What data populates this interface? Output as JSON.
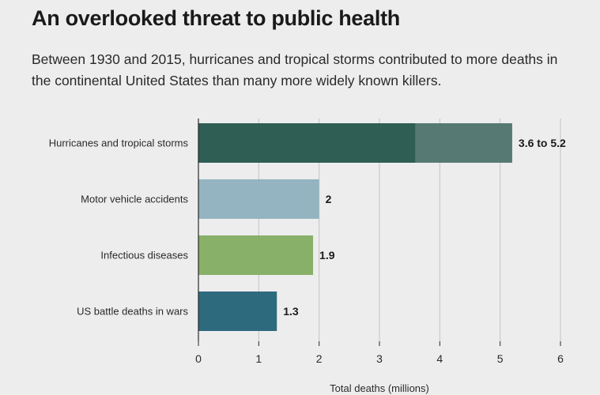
{
  "header": {
    "title": "An overlooked threat to public health",
    "subtitle": "Between 1930 and 2015, hurricanes and tropical storms contributed to more deaths in the continental United States than many more widely known killers."
  },
  "chart_data": {
    "type": "bar",
    "orientation": "horizontal",
    "categories": [
      "Hurricanes and tropical storms",
      "Motor vehicle accidents",
      "Infectious diseases",
      "US battle deaths in wars"
    ],
    "bars": [
      {
        "category": "Hurricanes and tropical storms",
        "low": 3.6,
        "high": 5.2,
        "label": "3.6 to 5.2",
        "color": "#2e5e54",
        "range_color": "#567a73"
      },
      {
        "category": "Motor vehicle accidents",
        "value": 2,
        "label": "2",
        "color": "#93b4c0"
      },
      {
        "category": "Infectious diseases",
        "value": 1.9,
        "label": "1.9",
        "color": "#88b068"
      },
      {
        "category": "US battle deaths in wars",
        "value": 1.3,
        "label": "1.3",
        "color": "#2e6a7e"
      }
    ],
    "xlabel": "Total deaths (millions)",
    "xlim": [
      0,
      6
    ],
    "xticks": [
      0,
      1,
      2,
      3,
      4,
      5,
      6
    ],
    "xtick_labels": [
      "0",
      "1",
      "2",
      "3",
      "4",
      "5",
      "6"
    ],
    "grid": true
  }
}
